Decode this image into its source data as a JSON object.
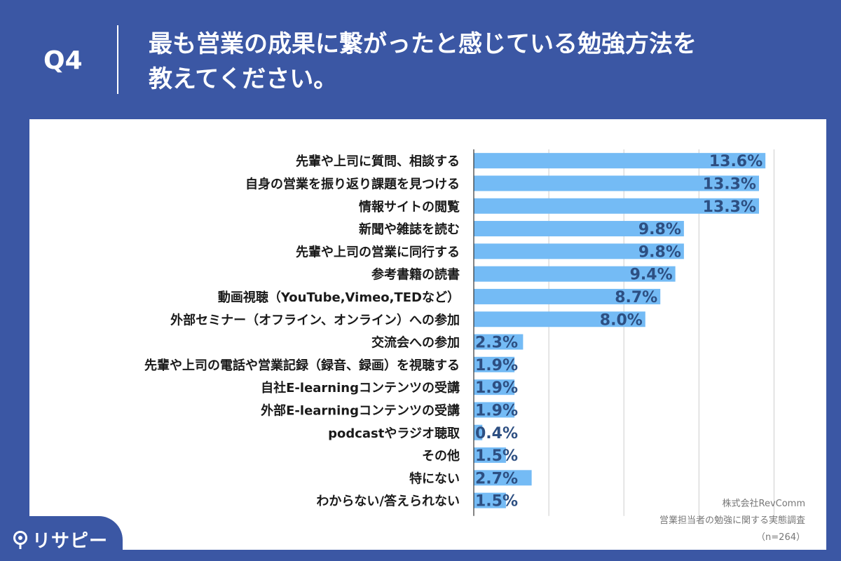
{
  "header": {
    "q_number": "Q4",
    "question_line1": "最も営業の成果に繋がったと感じている勉強方法を",
    "question_line2": "教えてください。"
  },
  "source": {
    "company": "株式会社RevComm",
    "survey": "営業担当者の勉強に関する実態調査",
    "sample": "（n=264）"
  },
  "logo": {
    "text": "リサピー",
    "icon": "map-pin-icon"
  },
  "colors": {
    "bar": "#74bbf5",
    "background": "#3b57a4",
    "value_text": "#2d4f82",
    "grid": "#cccccc"
  },
  "chart_data": {
    "type": "bar",
    "orientation": "horizontal",
    "categories": [
      "先輩や上司に質問、相談する",
      "自身の営業を振り返り課題を見つける",
      "情報サイトの閲覧",
      "新聞や雑誌を読む",
      "先輩や上司の営業に同行する",
      "参考書籍の読書",
      "動画視聴（YouTube,Vimeo,TEDなど）",
      "外部セミナー（オフライン、オンライン）への参加",
      "交流会への参加",
      "先輩や上司の電話や営業記録（録音、録画）を視聴する",
      "自社E-learningコンテンツの受講",
      "外部E-learningコンテンツの受講",
      "podcastやラジオ聴取",
      "その他",
      "特にない",
      "わからない/答えられない"
    ],
    "values": [
      13.6,
      13.3,
      13.3,
      9.8,
      9.8,
      9.4,
      8.7,
      8.0,
      2.3,
      1.9,
      1.9,
      1.9,
      0.4,
      1.5,
      2.7,
      1.5
    ],
    "value_labels": [
      "13.6%",
      "13.3%",
      "13.3%",
      "9.8%",
      "9.8%",
      "9.4%",
      "8.7%",
      "8.0%",
      "2.3%",
      "1.9%",
      "1.9%",
      "1.9%",
      "0.4%",
      "1.5%",
      "2.7%",
      "1.5%"
    ],
    "xlim": [
      0,
      16
    ],
    "grid": true
  }
}
